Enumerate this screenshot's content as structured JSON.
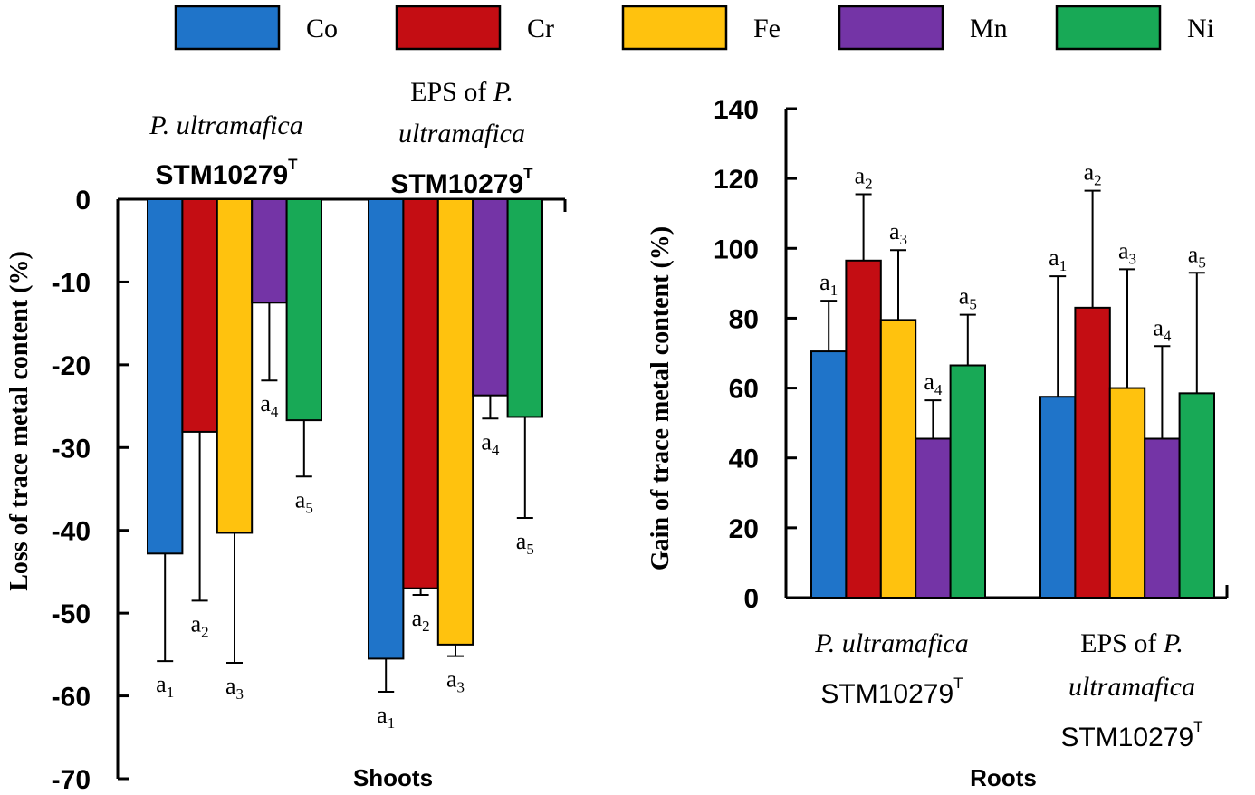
{
  "legend": [
    {
      "name": "Co",
      "color": "#1f74c9"
    },
    {
      "name": "Cr",
      "color": "#c40d13"
    },
    {
      "name": "Fe",
      "color": "#ffc20e"
    },
    {
      "name": "Mn",
      "color": "#7434a6"
    },
    {
      "name": "Ni",
      "color": "#18a956"
    }
  ],
  "chart_data": [
    {
      "type": "bar",
      "title": "Shoots",
      "ylabel": "Loss of trace metal content (%)",
      "ylim": [
        -70,
        0
      ],
      "yticks": [
        0,
        -10,
        -20,
        -30,
        -40,
        -50,
        -60,
        -70
      ],
      "categories": [
        {
          "line1_italic": "P. ultramafica",
          "line2": "STM10279",
          "sup": "T"
        },
        {
          "line1_plain": "EPS of ",
          "line1_italic": "P.",
          "line2_italic": "ultramafica",
          "line3": "STM10279",
          "sup": "T"
        }
      ],
      "series": [
        {
          "name": "Co",
          "values": [
            -42.8,
            -55.5
          ],
          "errors": [
            13.0,
            4.0
          ],
          "labels": [
            "a1",
            "a1"
          ]
        },
        {
          "name": "Cr",
          "values": [
            -28.1,
            -47.0
          ],
          "errors": [
            20.4,
            0.8
          ],
          "labels": [
            "a2",
            "a2"
          ]
        },
        {
          "name": "Fe",
          "values": [
            -40.3,
            -53.8
          ],
          "errors": [
            15.7,
            1.4
          ],
          "labels": [
            "a3",
            "a3"
          ]
        },
        {
          "name": "Mn",
          "values": [
            -12.5,
            -23.7
          ],
          "errors": [
            9.4,
            2.8
          ],
          "labels": [
            "a4",
            "a4"
          ]
        },
        {
          "name": "Ni",
          "values": [
            -26.7,
            -26.3
          ],
          "errors": [
            6.8,
            12.2
          ],
          "labels": [
            "a5",
            "a5"
          ]
        }
      ]
    },
    {
      "type": "bar",
      "title": "Roots",
      "ylabel": "Gain of trace metal content (%)",
      "ylim": [
        0,
        140
      ],
      "yticks": [
        0,
        20,
        40,
        60,
        80,
        100,
        120,
        140
      ],
      "categories": [
        {
          "line1_italic": "P. ultramafica",
          "line2": "STM10279",
          "sup": "T"
        },
        {
          "line1_plain": "EPS of ",
          "line1_italic": "P.",
          "line2_italic": "ultramafica",
          "line3": "STM10279",
          "sup": "T"
        }
      ],
      "series": [
        {
          "name": "Co",
          "values": [
            70.5,
            57.5
          ],
          "errors": [
            14.5,
            34.5
          ],
          "labels": [
            "a1",
            "a1"
          ]
        },
        {
          "name": "Cr",
          "values": [
            96.5,
            83.0
          ],
          "errors": [
            19.0,
            33.5
          ],
          "labels": [
            "a2",
            "a2"
          ]
        },
        {
          "name": "Fe",
          "values": [
            79.5,
            60.0
          ],
          "errors": [
            20.0,
            34.0
          ],
          "labels": [
            "a3",
            "a3"
          ]
        },
        {
          "name": "Mn",
          "values": [
            45.5,
            45.5
          ],
          "errors": [
            11.0,
            26.5
          ],
          "labels": [
            "a4",
            "a4"
          ]
        },
        {
          "name": "Ni",
          "values": [
            66.5,
            58.5
          ],
          "errors": [
            14.5,
            34.5
          ],
          "labels": [
            "a5",
            "a5"
          ]
        }
      ]
    }
  ]
}
